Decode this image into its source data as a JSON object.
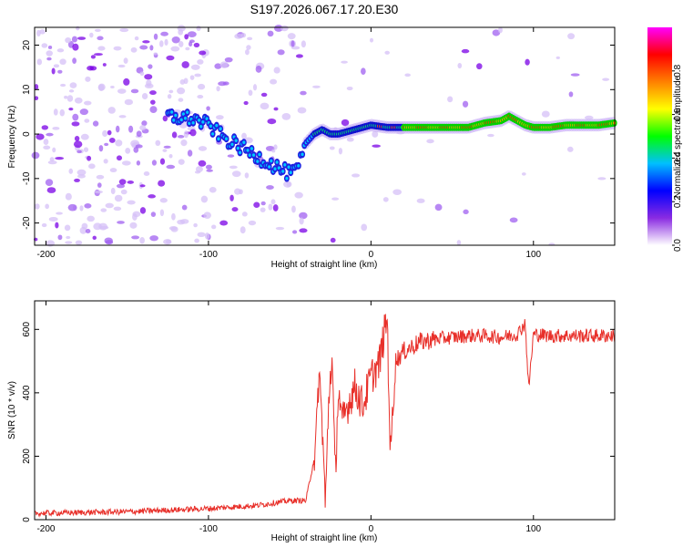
{
  "page_title": "S197.2026.067.17.20.E30",
  "chart_data": [
    {
      "type": "heatmap",
      "xlabel": "Height of straight line (km)",
      "ylabel": "Frequency (Hz)",
      "xlim": [
        -207,
        150
      ],
      "ylim": [
        -25,
        24
      ],
      "x_ticks": [
        -200,
        -100,
        0,
        100
      ],
      "y_ticks": [
        -20,
        -10,
        0,
        10,
        20
      ],
      "description_series": {
        "name": "dominant signal track",
        "x": [
          -125,
          -110,
          -100,
          -90,
          -80,
          -70,
          -60,
          -50,
          -45,
          -40,
          -35,
          -30,
          -25,
          -20,
          -10,
          0,
          10,
          20,
          30,
          40,
          50,
          60,
          70,
          80,
          85,
          90,
          95,
          100,
          110,
          120,
          130,
          140,
          150
        ],
        "y": [
          4,
          3.5,
          2,
          -1,
          -3,
          -5,
          -7,
          -9,
          -8,
          -2,
          0,
          1,
          0,
          0,
          1,
          2,
          1.5,
          1.5,
          1.5,
          1.5,
          1.5,
          1.5,
          2.5,
          3,
          4,
          3,
          2,
          1.5,
          1.5,
          2,
          2,
          2,
          2.5
        ]
      },
      "colorbar": {
        "label": "Normalized spectral amplitude",
        "range": [
          0,
          1
        ],
        "ticks": [
          "0.0",
          "0.2",
          "0.4",
          "0.6",
          "0.8"
        ],
        "colors": [
          "#ffffff",
          "#8a2be2",
          "#0000ff",
          "#00bfff",
          "#00ff00",
          "#ffff00",
          "#ff8000",
          "#ff0000",
          "#ff00ff"
        ]
      }
    },
    {
      "type": "line",
      "xlabel": "Height of straight line (km)",
      "ylabel": "SNR (10 * v/v)",
      "xlim": [
        -207,
        150
      ],
      "ylim": [
        0,
        690
      ],
      "x_ticks": [
        -200,
        -100,
        0,
        100
      ],
      "y_ticks": [
        0,
        200,
        400,
        600
      ],
      "series": [
        {
          "name": "SNR",
          "color": "#e8302a",
          "x": [
            -207,
            -150,
            -100,
            -70,
            -50,
            -40,
            -34,
            -32,
            -30,
            -28,
            -26,
            -24,
            -22,
            -20,
            -18,
            -15,
            -10,
            -5,
            0,
            5,
            10,
            12,
            15,
            20,
            30,
            40,
            50,
            60,
            70,
            80,
            90,
            95,
            97,
            100,
            110,
            120,
            130,
            140,
            150
          ],
          "y": [
            20,
            25,
            35,
            45,
            60,
            60,
            220,
            470,
            300,
            40,
            380,
            520,
            130,
            420,
            300,
            350,
            420,
            360,
            450,
            490,
            640,
            200,
            500,
            530,
            560,
            570,
            575,
            580,
            580,
            575,
            585,
            620,
            410,
            585,
            580,
            580,
            580,
            580,
            580
          ]
        }
      ]
    }
  ]
}
